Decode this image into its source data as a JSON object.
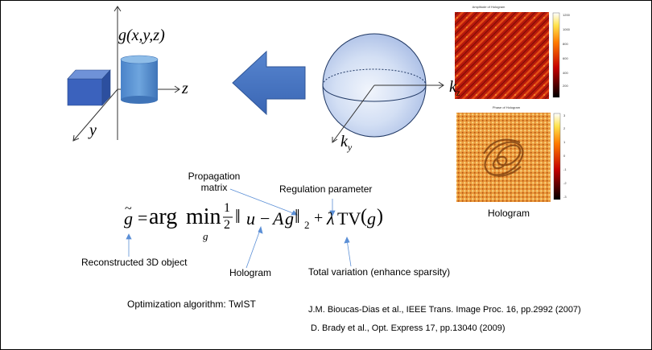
{
  "diagram": {
    "object_label": "g(x,y,z)",
    "axes": {
      "x": "y",
      "z": "z"
    },
    "sphere_axes": {
      "z": "k",
      "z_sub": "z",
      "y": "k",
      "y_sub": "y"
    }
  },
  "hologram": {
    "amplitude_title": "Amplitude of Hologram",
    "amplitude_ticks": [
      "1200",
      "1000",
      "800",
      "600",
      "400",
      "200"
    ],
    "phase_title": "Phase of Hologram",
    "phase_ticks": [
      "3",
      "2",
      "1",
      "0",
      "-1",
      "-2",
      "-3"
    ],
    "caption": "Hologram"
  },
  "equation": {
    "lhs": "g",
    "tilde": "~",
    "eq": "=",
    "arg": "arg",
    "min": "min",
    "min_sub": "g",
    "half_num": "1",
    "half_den": "2",
    "norm_open": "‖",
    "u": "u",
    "minus": "−",
    "A": "A",
    "g": "g",
    "norm_close": "‖",
    "norm_sub": "2",
    "plus": "+",
    "lambda": "λ",
    "tv": "TV",
    "paren_open": "(",
    "tv_arg": "g",
    "paren_close": ")"
  },
  "annotations": {
    "propagation_line1": "Propagation",
    "propagation_line2": "matrix",
    "regulation": "Regulation parameter",
    "reconstructed": "Reconstructed 3D object",
    "hologram": "Hologram",
    "total_variation": "Total variation (enhance sparsity)"
  },
  "algorithm": "Optimization algorithm: TwIST",
  "references": [
    "J.M. Bioucas-Dias et al., IEEE Trans. Image Proc. 16, pp.2992 (2007)",
    "D. Brady et al., Opt. Express 17, pp.13040 (2009)"
  ]
}
